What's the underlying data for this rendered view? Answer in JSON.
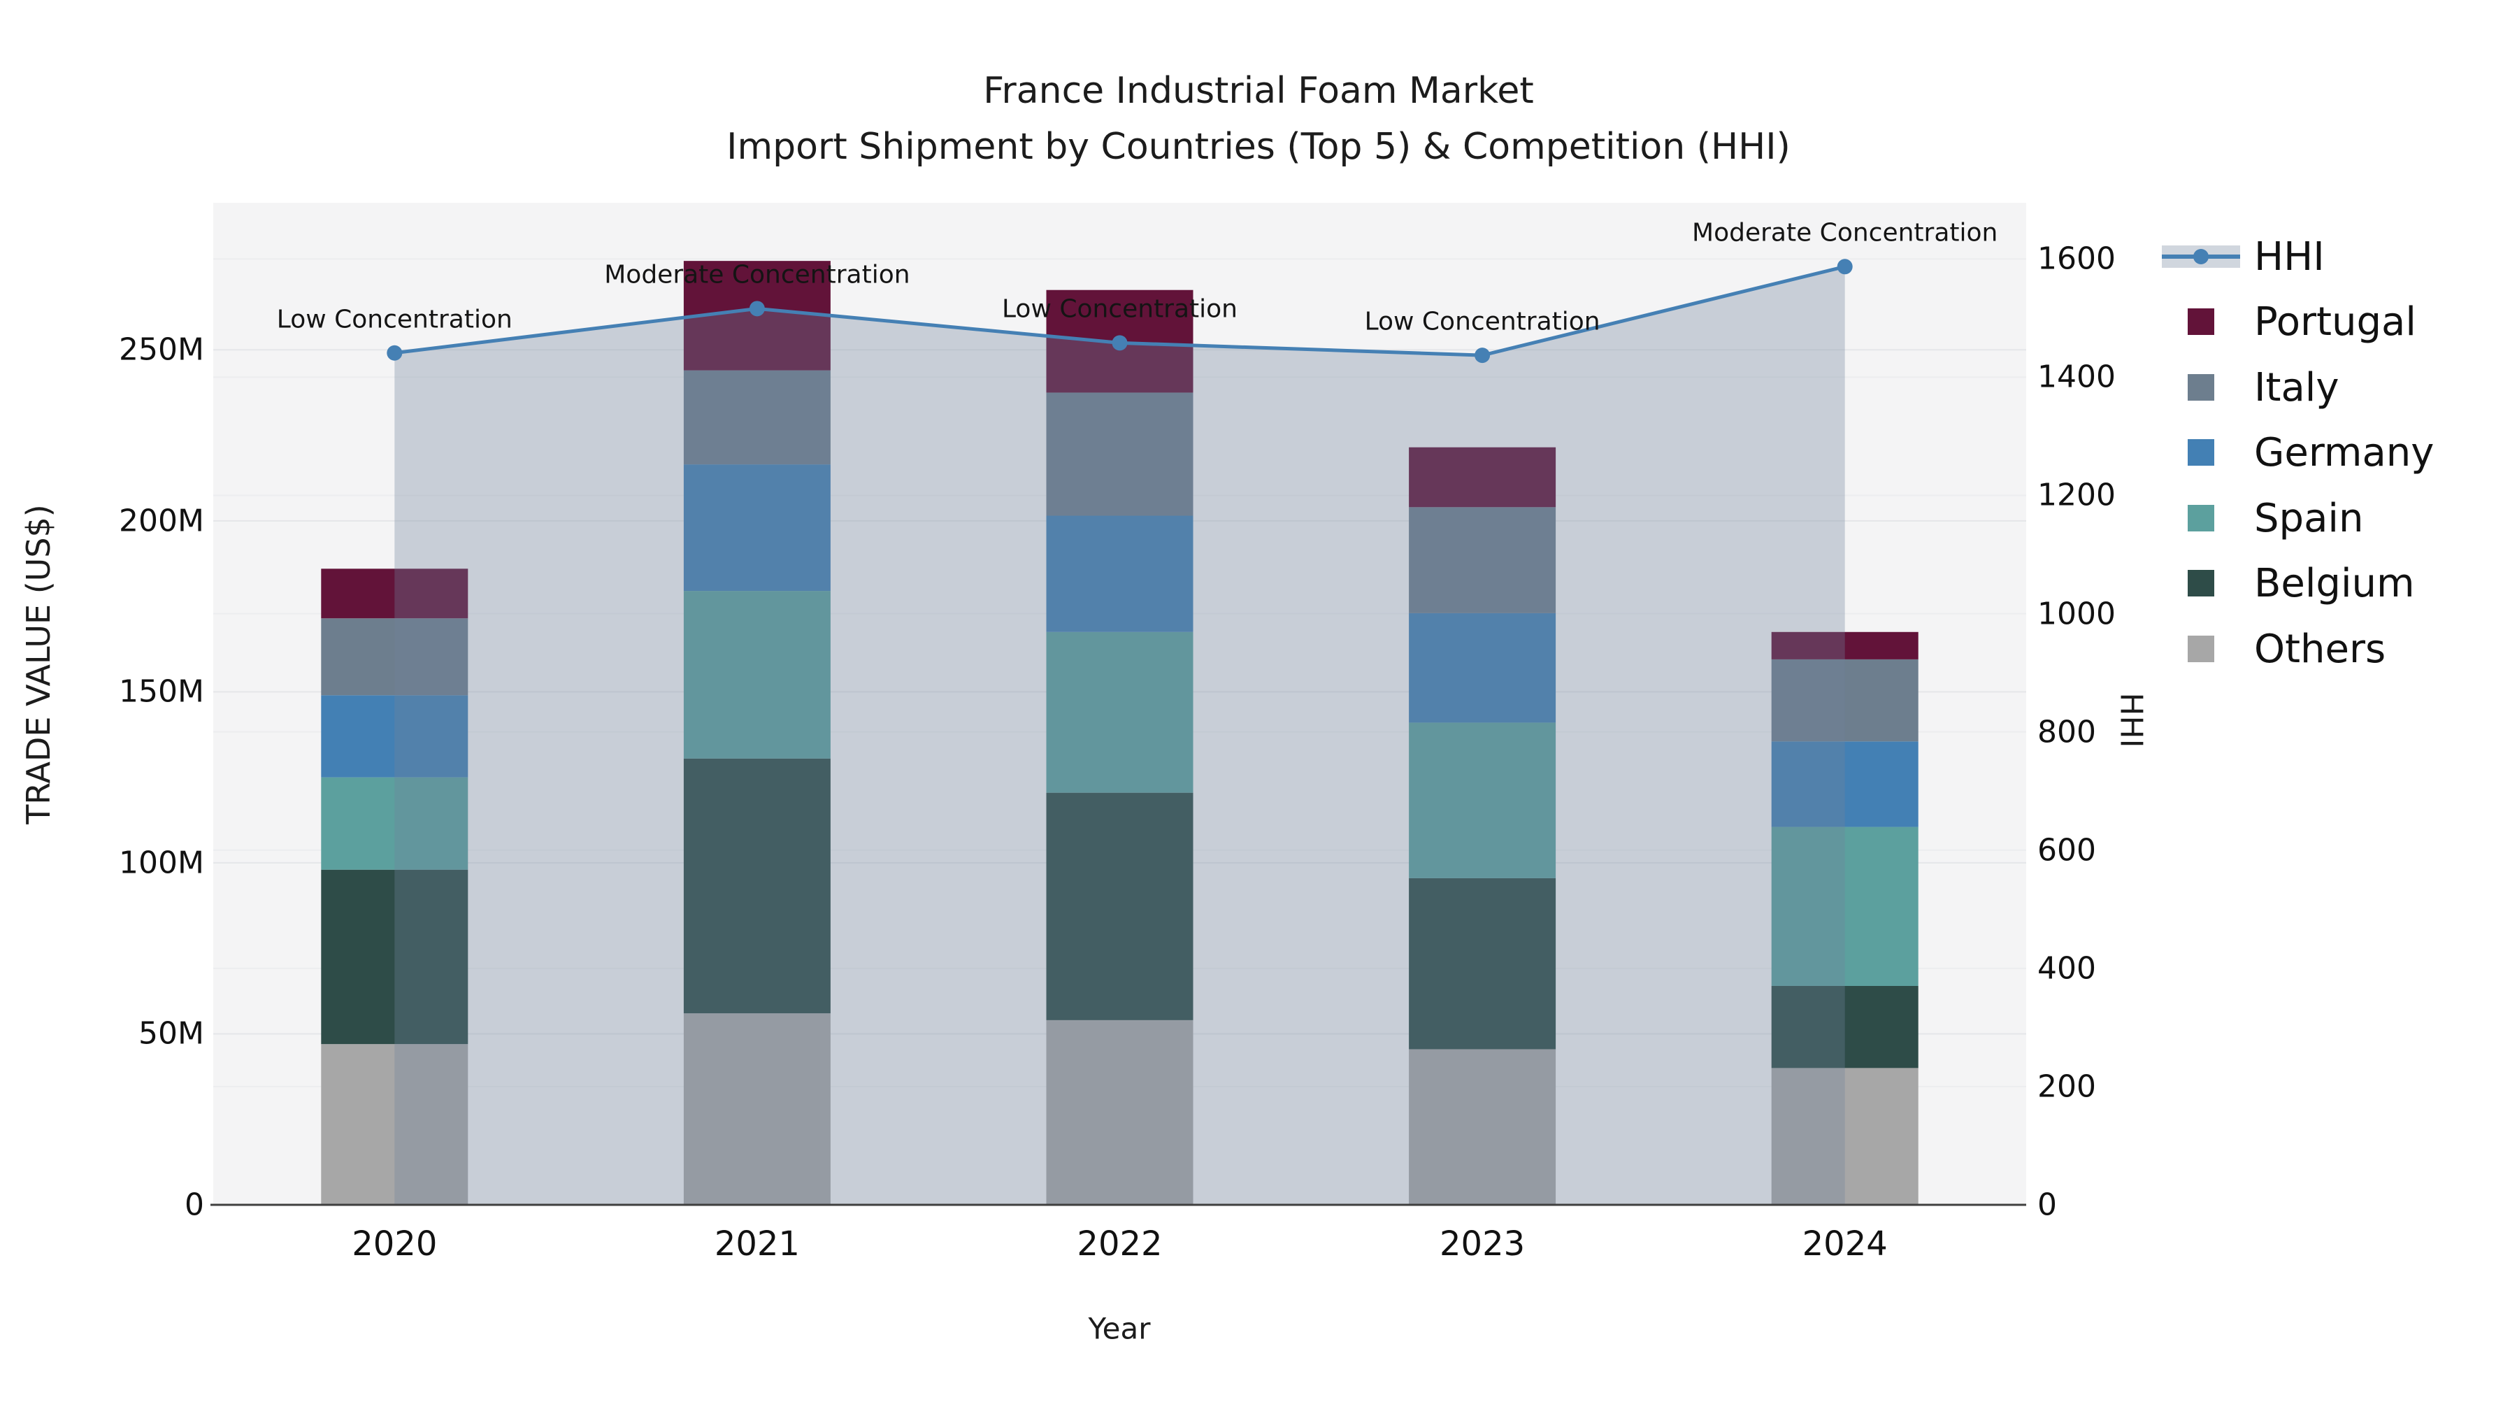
{
  "title": {
    "line1": "France Industrial Foam Market",
    "line2": "Import Shipment by Countries (Top 5) & Competition (HHI)"
  },
  "axes": {
    "x_title": "Year",
    "y_left_title": "TRADE VALUE (US$)",
    "y_right_title": "HHI",
    "x_tick_labels": [
      "2020",
      "2021",
      "2022",
      "2023",
      "2024"
    ],
    "y_left_tick_labels": [
      "0",
      "50M",
      "100M",
      "150M",
      "200M",
      "250M"
    ],
    "y_left_tick_values": [
      0,
      50,
      100,
      150,
      200,
      250
    ],
    "y_right_tick_labels": [
      "0",
      "200",
      "400",
      "600",
      "800",
      "1000",
      "1200",
      "1400",
      "1600"
    ],
    "y_right_tick_values": [
      0,
      200,
      400,
      600,
      800,
      1000,
      1200,
      1400,
      1600
    ]
  },
  "legend": {
    "items": [
      {
        "label": "HHI",
        "type": "line",
        "color": "#4580b4"
      },
      {
        "label": "Portugal",
        "type": "swatch",
        "color": "#621339"
      },
      {
        "label": "Italy",
        "type": "swatch",
        "color": "#6d7e8e"
      },
      {
        "label": "Germany",
        "type": "swatch",
        "color": "#4380b4"
      },
      {
        "label": "Spain",
        "type": "swatch",
        "color": "#5ca09e"
      },
      {
        "label": "Belgium",
        "type": "swatch",
        "color": "#2e4c48"
      },
      {
        "label": "Others",
        "type": "swatch",
        "color": "#a7a7a7"
      }
    ]
  },
  "chart_data": {
    "type": "combo_stacked_bar_line",
    "title": "France Industrial Foam Market — Import Shipment by Countries (Top 5) & Competition (HHI)",
    "xlabel": "Year",
    "ylabel_left": "TRADE VALUE (US$)",
    "ylabel_right": "HHI",
    "categories": [
      "2020",
      "2021",
      "2022",
      "2023",
      "2024"
    ],
    "value_unit": "million US$",
    "stack_order": "bottom_to_top",
    "series": [
      {
        "name": "Others",
        "color": "#a7a7a7",
        "values": [
          47.0,
          56.0,
          54.0,
          45.5,
          40.0
        ]
      },
      {
        "name": "Belgium",
        "color": "#2e4c48",
        "values": [
          51.0,
          74.5,
          66.5,
          50.0,
          24.0
        ]
      },
      {
        "name": "Spain",
        "color": "#5ca09e",
        "values": [
          27.0,
          49.0,
          47.0,
          45.5,
          46.5
        ]
      },
      {
        "name": "Germany",
        "color": "#4380b4",
        "values": [
          24.0,
          37.0,
          34.0,
          32.0,
          25.0
        ]
      },
      {
        "name": "Italy",
        "color": "#6d7e8e",
        "values": [
          22.5,
          27.5,
          36.0,
          31.0,
          24.0
        ]
      },
      {
        "name": "Portugal",
        "color": "#621339",
        "values": [
          14.5,
          32.0,
          30.0,
          17.5,
          8.0
        ]
      }
    ],
    "bar_totals": [
      186.0,
      276.0,
      267.5,
      221.5,
      167.5
    ],
    "line_series": {
      "name": "HHI",
      "axis": "right",
      "color": "#4580b4",
      "values": [
        1441,
        1516,
        1458,
        1437,
        1587
      ],
      "point_annotations": [
        "Low Concentration",
        "Moderate Concentration",
        "Low Concentration",
        "Low Concentration",
        "Moderate Concentration"
      ],
      "area_fill_color": "rgba(113,131,156,0.33)"
    },
    "ylim_left": [
      0,
      293
    ],
    "ylim_right": [
      0,
      1695
    ],
    "grid": true,
    "legend_position": "outside-right-top",
    "plot_background": "#f4f4f5"
  }
}
